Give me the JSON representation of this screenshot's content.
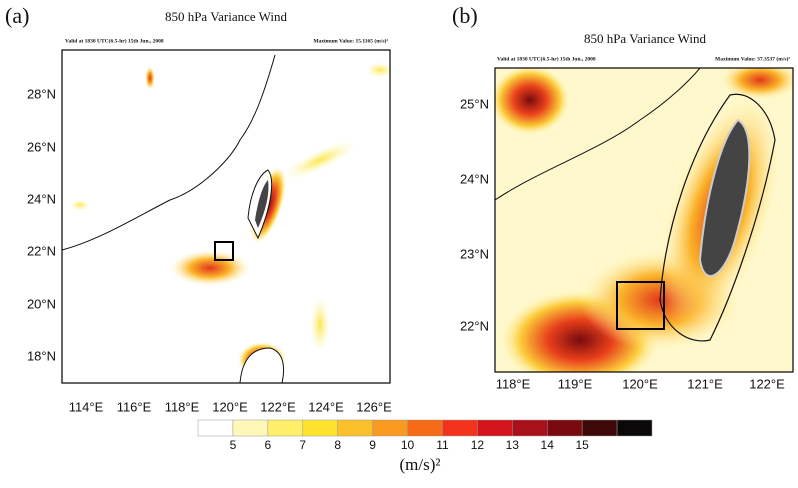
{
  "panels": [
    {
      "label": "(a)",
      "title": "850 hPa Variance Wind",
      "valid": "Valid at 1830 UTC(6.5-hr) 15th Jun., 2008",
      "maximum": "Maximum Value: 15.1165 (m/s)²",
      "lat_labels": [
        "28°N",
        "26°N",
        "24°N",
        "22°N",
        "20°N",
        "18°N"
      ],
      "lon_labels": [
        "114°E",
        "116°E",
        "118°E",
        "120°E",
        "122°E",
        "124°E",
        "126°E"
      ]
    },
    {
      "label": "(b)",
      "title": "850 hPa Variance Wind",
      "valid": "Valid at 1830 UTC(6.5-hr) 15th Jun., 2008",
      "maximum": "Maximum Value: 37.3537 (m/s)²",
      "lat_labels": [
        "25°N",
        "24°N",
        "23°N",
        "22°N"
      ],
      "lon_labels": [
        "118°E",
        "119°E",
        "120°E",
        "121°E",
        "122°E"
      ]
    }
  ],
  "colorbar": {
    "labels": [
      "5",
      "6",
      "7",
      "8",
      "9",
      "10",
      "11",
      "12",
      "13",
      "14",
      "15"
    ],
    "colors": [
      "#ffffff",
      "#fff7b8",
      "#ffef6a",
      "#fde22e",
      "#fbc02a",
      "#f99a1e",
      "#f76a16",
      "#f2321a",
      "#d2151a",
      "#a8101a",
      "#7a0a0e",
      "#3e0808",
      "#0a0808"
    ],
    "unit": "(m/s)²"
  }
}
